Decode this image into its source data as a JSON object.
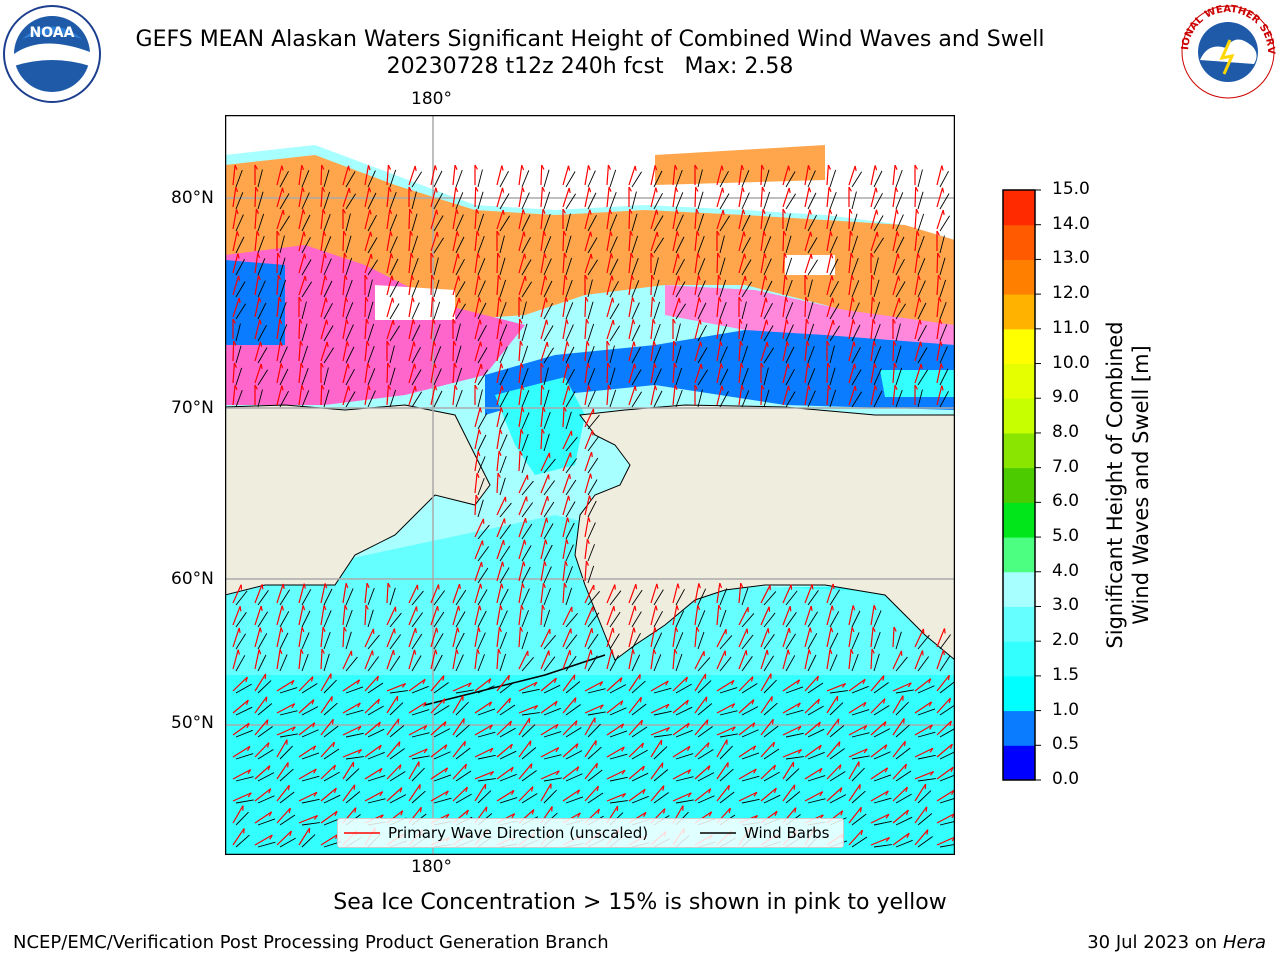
{
  "header": {
    "title_line1": "GEFS MEAN Alaskan Waters Significant Height of Combined Wind Waves and Swell",
    "title_line2": "20230728 t12z 240h fcst   Max: 2.58"
  },
  "logos": {
    "left": "NOAA",
    "right": "NATIONAL WEATHER SERVICE"
  },
  "map": {
    "lon_label_top": "180°",
    "lon_label_bottom": "180°",
    "lat_labels": [
      "80°N",
      "70°N",
      "60°N",
      "50°N"
    ],
    "colors": {
      "land": "#efedde",
      "ice_pink": "#ff66cc",
      "ice_orange": "#ffa64d",
      "water_blue": "#0a7cff",
      "water_cyan": "#33ffff",
      "water_lightcyan": "#a8ffff",
      "arrow": "#ff0000",
      "barb": "#000000"
    }
  },
  "legend": {
    "primary_wave": "Primary Wave Direction (unscaled)",
    "wind_barbs": "Wind Barbs"
  },
  "colorbar": {
    "title_line1": "Significant Height of Combined",
    "title_line2": "Wind Waves and Swell [m]",
    "ticks": [
      "0.0",
      "0.5",
      "1.0",
      "1.5",
      "2.0",
      "3.0",
      "4.0",
      "5.0",
      "6.0",
      "7.0",
      "8.0",
      "9.0",
      "10.0",
      "11.0",
      "12.0",
      "13.0",
      "14.0",
      "15.0"
    ],
    "colors": [
      "#0000ff",
      "#0a7cff",
      "#00ffff",
      "#33ffff",
      "#66ffff",
      "#a8ffff",
      "#4dff80",
      "#00e61a",
      "#4ccc00",
      "#8ae600",
      "#c8ff00",
      "#e6ff00",
      "#ffff00",
      "#ffb300",
      "#ff8000",
      "#ff5a00",
      "#ff2a00",
      "#ff0000"
    ]
  },
  "caption": "Sea Ice Concentration > 15% is shown in pink to yellow",
  "footer": {
    "left": "NCEP/EMC/Verification Post Processing Product Generation Branch",
    "right_date": "30 Jul 2023 on ",
    "right_host": "Hera"
  }
}
